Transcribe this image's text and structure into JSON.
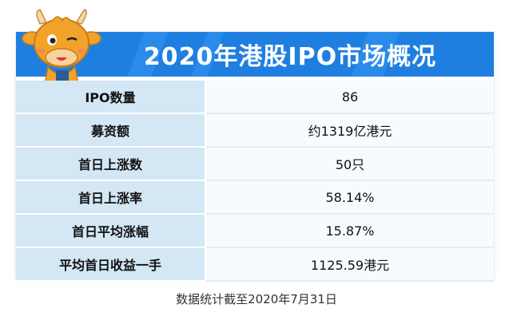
{
  "title": "2020年港股IPO市场概况",
  "rows": [
    {
      "label": "IPO数量",
      "value": "86"
    },
    {
      "label": "募资额",
      "value": "约1319亿港元"
    },
    {
      "label": "首日上涨数",
      "value": "50只"
    },
    {
      "label": "首日上涨率",
      "value": "58.14%"
    },
    {
      "label": "首日平均涨幅",
      "value": "15.87%"
    },
    {
      "label": "平均首日收益一手",
      "value": "1125.59港元"
    }
  ],
  "footnote": "数据统计截至2020年7月31日",
  "colors": {
    "header": "#1f7fe0",
    "label_bg": "#d3e7f5",
    "value_bg": "#f7fbfd",
    "mascot": "#f3a32a"
  },
  "icons": {
    "mascot": "cartoon-calf-mascot-icon"
  }
}
